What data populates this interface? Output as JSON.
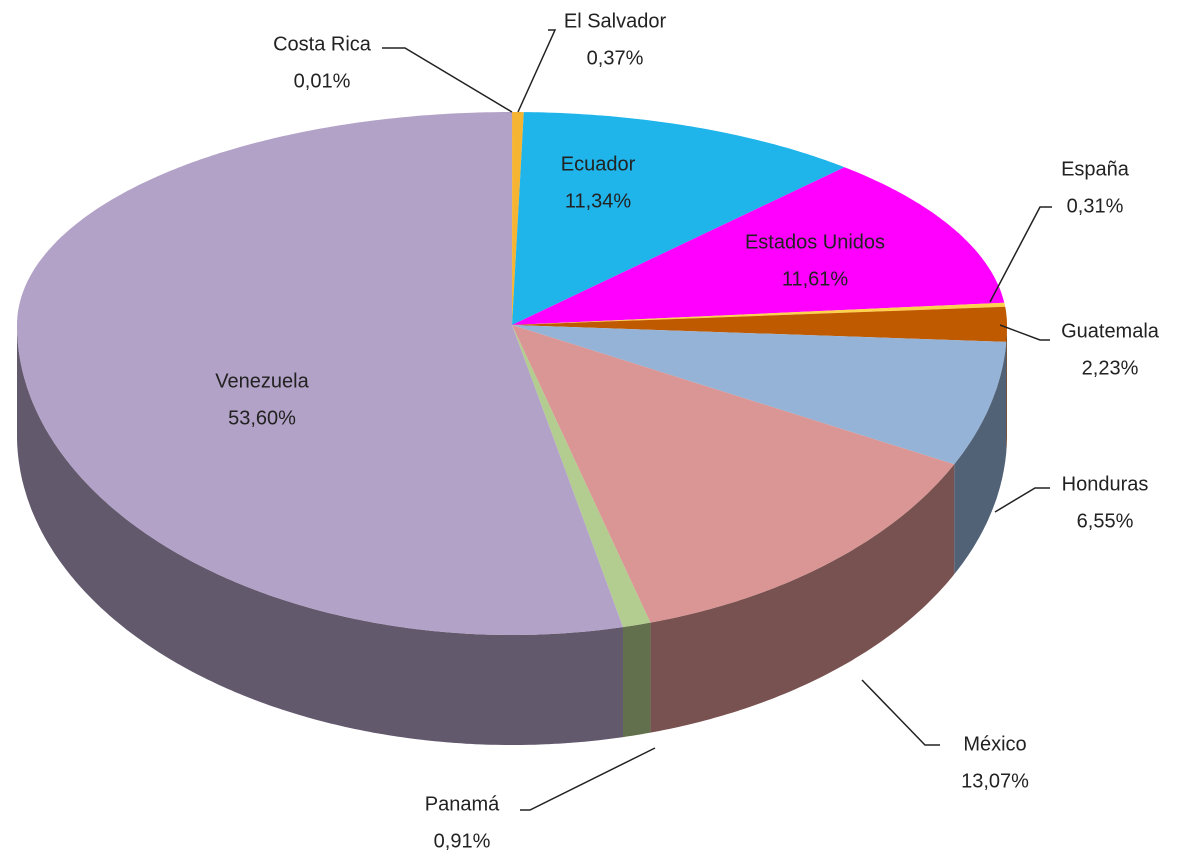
{
  "chart_data": {
    "type": "pie",
    "categories": [
      "Costa Rica",
      "El Salvador",
      "Ecuador",
      "Estados Unidos",
      "España",
      "Guatemala",
      "Honduras",
      "México",
      "Panamá",
      "Venezuela"
    ],
    "values": [
      0.01,
      0.37,
      11.34,
      11.61,
      0.31,
      2.23,
      6.55,
      13.07,
      0.91,
      53.6
    ],
    "value_labels": [
      "0,01%",
      "0,37%",
      "11,34%",
      "11,61%",
      "0,31%",
      "2,23%",
      "6,55%",
      "13,07%",
      "0,91%",
      "53,60%"
    ],
    "colors": [
      "#e46c0a",
      "#f5b431",
      "#1fb4ea",
      "#ff00ff",
      "#ffd24d",
      "#c05a00",
      "#95b3d7",
      "#d99694",
      "#b3cc8f",
      "#b3a2c7"
    ]
  }
}
